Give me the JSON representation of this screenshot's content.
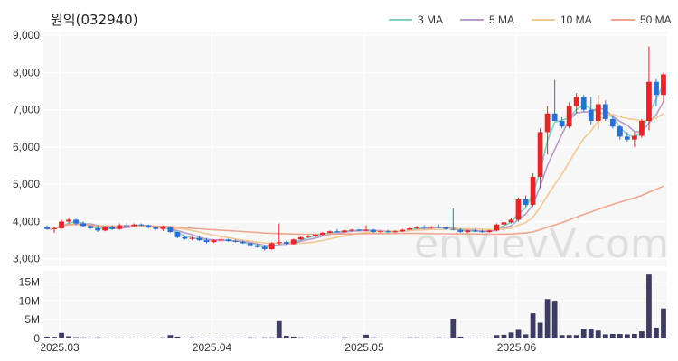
{
  "chart_data": {
    "type": "candlestick",
    "title": "원익(032940)",
    "watermark": "enVievV.com",
    "x_ticks": [
      "2025.03",
      "2025.04",
      "2025.05",
      "2025.06"
    ],
    "price_axis": {
      "ylim": [
        2800,
        9100
      ],
      "ticks": [
        "9,000",
        "8,000",
        "7,000",
        "6,000",
        "5,000",
        "4,000",
        "3,000"
      ],
      "tick_values": [
        9000,
        8000,
        7000,
        6000,
        5000,
        4000,
        3000
      ]
    },
    "volume_axis": {
      "ylim": [
        0,
        18000000
      ],
      "ticks": [
        "15M",
        "10M",
        "5M",
        "0"
      ],
      "tick_values": [
        15000000,
        10000000,
        5000000,
        0
      ]
    },
    "legend": [
      {
        "name": "3 MA",
        "color": "#7fd1c8"
      },
      {
        "name": "5 MA",
        "color": "#b99ac9"
      },
      {
        "name": "10 MA",
        "color": "#f2c893"
      },
      {
        "name": "50 MA",
        "color": "#f0a58e"
      }
    ],
    "colors": {
      "up": "#e8242b",
      "down": "#2a6fd6",
      "volume": "#3d3d63",
      "panel_bg": "#f7f7f7",
      "grid": "#ffffff"
    },
    "candles": [
      [
        3850,
        3900,
        3780,
        3800
      ],
      [
        3800,
        3850,
        3700,
        3820
      ],
      [
        3820,
        4050,
        3800,
        4000
      ],
      [
        4000,
        4100,
        3950,
        4050
      ],
      [
        4050,
        4080,
        3900,
        3950
      ],
      [
        3950,
        4000,
        3850,
        3880
      ],
      [
        3880,
        3900,
        3800,
        3820
      ],
      [
        3820,
        3900,
        3720,
        3760
      ],
      [
        3760,
        3880,
        3740,
        3850
      ],
      [
        3850,
        3900,
        3780,
        3800
      ],
      [
        3800,
        3950,
        3780,
        3900
      ],
      [
        3900,
        3950,
        3850,
        3880
      ],
      [
        3880,
        3950,
        3860,
        3920
      ],
      [
        3920,
        3950,
        3880,
        3900
      ],
      [
        3900,
        3920,
        3820,
        3840
      ],
      [
        3840,
        3860,
        3780,
        3800
      ],
      [
        3800,
        3900,
        3750,
        3850
      ],
      [
        3850,
        3870,
        3700,
        3720
      ],
      [
        3720,
        3730,
        3550,
        3580
      ],
      [
        3580,
        3600,
        3520,
        3540
      ],
      [
        3540,
        3590,
        3500,
        3560
      ],
      [
        3560,
        3600,
        3480,
        3500
      ],
      [
        3500,
        3560,
        3420,
        3450
      ],
      [
        3450,
        3520,
        3430,
        3500
      ],
      [
        3500,
        3560,
        3480,
        3520
      ],
      [
        3520,
        3540,
        3460,
        3480
      ],
      [
        3480,
        3520,
        3440,
        3460
      ],
      [
        3460,
        3490,
        3400,
        3420
      ],
      [
        3420,
        3440,
        3320,
        3340
      ],
      [
        3340,
        3400,
        3300,
        3320
      ],
      [
        3320,
        3360,
        3220,
        3260
      ],
      [
        3260,
        3450,
        3240,
        3420
      ],
      [
        3420,
        3950,
        3380,
        3450
      ],
      [
        3450,
        3480,
        3350,
        3400
      ],
      [
        3400,
        3540,
        3380,
        3520
      ],
      [
        3520,
        3600,
        3500,
        3580
      ],
      [
        3580,
        3640,
        3560,
        3620
      ],
      [
        3620,
        3680,
        3580,
        3650
      ],
      [
        3650,
        3720,
        3620,
        3700
      ],
      [
        3700,
        3760,
        3680,
        3740
      ],
      [
        3740,
        3800,
        3700,
        3720
      ],
      [
        3720,
        3780,
        3700,
        3760
      ],
      [
        3760,
        3800,
        3730,
        3780
      ],
      [
        3780,
        3800,
        3740,
        3760
      ],
      [
        3760,
        3900,
        3740,
        3780
      ],
      [
        3780,
        3800,
        3700,
        3720
      ],
      [
        3720,
        3760,
        3690,
        3740
      ],
      [
        3740,
        3780,
        3700,
        3720
      ],
      [
        3720,
        3760,
        3700,
        3740
      ],
      [
        3740,
        3800,
        3720,
        3780
      ],
      [
        3780,
        3840,
        3760,
        3820
      ],
      [
        3820,
        3880,
        3800,
        3860
      ],
      [
        3860,
        3900,
        3820,
        3840
      ],
      [
        3840,
        3880,
        3800,
        3860
      ],
      [
        3860,
        3920,
        3820,
        3840
      ],
      [
        3840,
        3860,
        3780,
        3800
      ],
      [
        3800,
        4350,
        3760,
        3780
      ],
      [
        3780,
        3820,
        3700,
        3720
      ],
      [
        3720,
        3780,
        3700,
        3760
      ],
      [
        3760,
        3800,
        3720,
        3740
      ],
      [
        3740,
        3780,
        3700,
        3720
      ],
      [
        3720,
        3780,
        3700,
        3760
      ],
      [
        3760,
        3950,
        3740,
        3920
      ],
      [
        3920,
        4000,
        3880,
        3980
      ],
      [
        3980,
        4100,
        3950,
        4050
      ],
      [
        4050,
        4650,
        4000,
        4600
      ],
      [
        4600,
        4700,
        4400,
        4450
      ],
      [
        4450,
        5300,
        4400,
        5200
      ],
      [
        5200,
        6500,
        4900,
        6400
      ],
      [
        6400,
        7100,
        5800,
        6900
      ],
      [
        6900,
        7800,
        6700,
        6700
      ],
      [
        6700,
        6800,
        6500,
        6550
      ],
      [
        6550,
        7200,
        6500,
        7100
      ],
      [
        7100,
        7450,
        6900,
        7350
      ],
      [
        7350,
        7400,
        6950,
        7000
      ],
      [
        7000,
        7350,
        6600,
        6700
      ],
      [
        6700,
        7400,
        6500,
        7150
      ],
      [
        7150,
        7250,
        6700,
        6750
      ],
      [
        6750,
        6850,
        6500,
        6550
      ],
      [
        6550,
        6600,
        6200,
        6280
      ],
      [
        6280,
        6400,
        6150,
        6200
      ],
      [
        6200,
        6400,
        6000,
        6300
      ],
      [
        6300,
        6750,
        6250,
        6700
      ],
      [
        6700,
        8700,
        6450,
        7750
      ],
      [
        7750,
        7850,
        7100,
        7400
      ],
      [
        7400,
        8000,
        7200,
        7950
      ]
    ],
    "volumes": [
      500000,
      450000,
      1500000,
      600000,
      350000,
      300000,
      250000,
      300000,
      250000,
      200000,
      250000,
      200000,
      250000,
      200000,
      200000,
      180000,
      300000,
      900000,
      500000,
      250000,
      300000,
      250000,
      200000,
      200000,
      250000,
      200000,
      200000,
      200000,
      300000,
      250000,
      300000,
      300000,
      4600000,
      700000,
      500000,
      300000,
      250000,
      250000,
      250000,
      250000,
      200000,
      300000,
      250000,
      200000,
      1000000,
      300000,
      250000,
      200000,
      200000,
      250000,
      300000,
      300000,
      250000,
      200000,
      300000,
      250000,
      5200000,
      500000,
      250000,
      200000,
      200000,
      250000,
      900000,
      1000000,
      1600000,
      2300000,
      1100000,
      6700000,
      4200000,
      10500000,
      9800000,
      900000,
      900000,
      900000,
      2600000,
      2500000,
      2100000,
      1100000,
      1200000,
      1200000,
      1100000,
      1200000,
      1900000,
      17000000,
      2900000,
      8000000
    ]
  }
}
